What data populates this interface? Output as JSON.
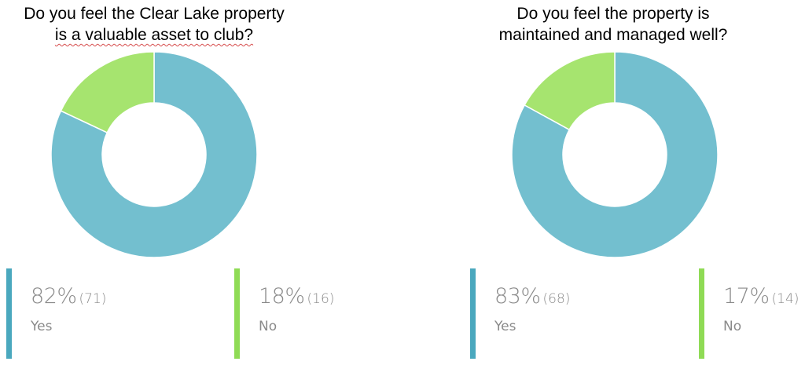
{
  "colors": {
    "yes": "#73bfcf",
    "no": "#a6e46f",
    "yes_bar": "#4aa8be",
    "no_bar": "#8fdb55"
  },
  "chart_data": [
    {
      "type": "pie",
      "title_lines": [
        "Do you feel the Clear Lake property",
        "is a valuable asset to club?"
      ],
      "slices": [
        {
          "label": "Yes",
          "percent": 82,
          "percent_text": "82%",
          "count": 71,
          "count_text": "(71)",
          "color": "#73bfcf"
        },
        {
          "label": "No",
          "percent": 18,
          "percent_text": "18%",
          "count": 16,
          "count_text": "(16)",
          "color": "#a6e46f"
        }
      ]
    },
    {
      "type": "pie",
      "title_lines": [
        "Do you feel the property is",
        "maintained and managed well?"
      ],
      "slices": [
        {
          "label": "Yes",
          "percent": 83,
          "percent_text": "83%",
          "count": 68,
          "count_text": "(68)",
          "color": "#73bfcf"
        },
        {
          "label": "No",
          "percent": 17,
          "percent_text": "17%",
          "count": 14,
          "count_text": "(14)",
          "color": "#a6e46f"
        }
      ]
    }
  ]
}
